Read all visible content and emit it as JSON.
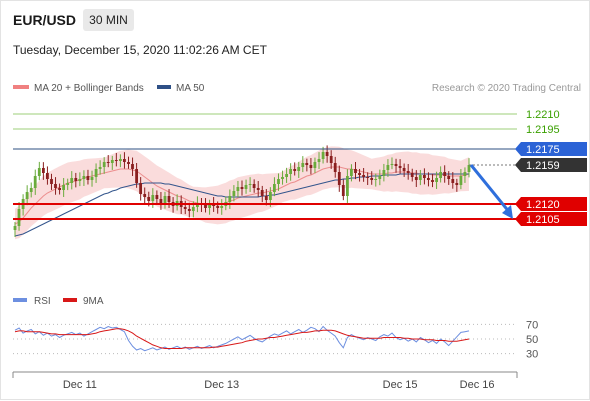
{
  "header": {
    "symbol": "EUR/USD",
    "timeframe": "30 MIN",
    "datetime": "Tuesday, December 15, 2020 11:02:26 AM CET"
  },
  "legend": {
    "ma20": "MA 20 + Bollinger Bands",
    "ma50": "MA 50",
    "rsi": "RSI",
    "ma9": "9MA"
  },
  "credit": "Research © 2020 Trading Central",
  "colors": {
    "candle_up": "#6aab3c",
    "candle_down": "#8a1f1f",
    "bollinger": "#f5b2b2",
    "ma20": "#e87a7a",
    "ma50": "#33558c",
    "target": "#3aa000",
    "current": "#333333",
    "support": "#e00000",
    "resistance_blue": "#2b63d6",
    "rsi": "#6d8fe0",
    "rsi_ma": "#d81818",
    "arrow": "#2f6fdc"
  },
  "chart_data": [
    {
      "type": "candlestick",
      "title": "",
      "x_tick_labels": [
        "Dec 11",
        "Dec 13",
        "Dec 15",
        "Dec 16"
      ],
      "x_tick_index": [
        16,
        51,
        95,
        114
      ],
      "ylim": [
        1.2075,
        1.2225
      ],
      "levels": [
        {
          "value": 1.221,
          "label": "1.2210",
          "kind": "target"
        },
        {
          "value": 1.2195,
          "label": "1.2195",
          "kind": "target"
        },
        {
          "value": 1.2175,
          "label": "1.2175",
          "kind": "resistance"
        },
        {
          "value": 1.2159,
          "label": "1.2159",
          "kind": "current"
        },
        {
          "value": 1.212,
          "label": "1.2120",
          "kind": "support"
        },
        {
          "value": 1.2105,
          "label": "1.2105",
          "kind": "support"
        }
      ],
      "close": [
        1.2098,
        1.2115,
        1.2125,
        1.2132,
        1.2136,
        1.2148,
        1.2156,
        1.2151,
        1.2145,
        1.214,
        1.2136,
        1.2134,
        1.2139,
        1.2141,
        1.2146,
        1.2143,
        1.2145,
        1.2148,
        1.2144,
        1.2147,
        1.2155,
        1.2157,
        1.2162,
        1.2161,
        1.2164,
        1.2163,
        1.2165,
        1.2162,
        1.216,
        1.2155,
        1.2141,
        1.213,
        1.2127,
        1.2123,
        1.2129,
        1.2125,
        1.2121,
        1.2128,
        1.2122,
        1.2118,
        1.2123,
        1.2117,
        1.2115,
        1.2113,
        1.2117,
        1.2121,
        1.2119,
        1.2116,
        1.212,
        1.2118,
        1.2116,
        1.2118,
        1.2122,
        1.2128,
        1.2133,
        1.2137,
        1.2135,
        1.2139,
        1.214,
        1.2136,
        1.2134,
        1.2128,
        1.2124,
        1.2132,
        1.214,
        1.2145,
        1.2147,
        1.215,
        1.2155,
        1.2153,
        1.2157,
        1.2161,
        1.2159,
        1.2156,
        1.2162,
        1.2165,
        1.2172,
        1.2168,
        1.2161,
        1.2152,
        1.2139,
        1.2128,
        1.2148,
        1.2155,
        1.2151,
        1.2149,
        1.2147,
        1.2146,
        1.2144,
        1.2145,
        1.2148,
        1.2154,
        1.2159,
        1.216,
        1.2158,
        1.2156,
        1.2153,
        1.2151,
        1.2147,
        1.2144,
        1.2149,
        1.2146,
        1.2144,
        1.2142,
        1.2146,
        1.2152,
        1.2148,
        1.2145,
        1.2141,
        1.2139,
        1.2148,
        1.2152,
        1.2159
      ],
      "ma20": [
        1.21,
        1.2102,
        1.2106,
        1.2111,
        1.2116,
        1.212,
        1.2124,
        1.2128,
        1.2131,
        1.2133,
        1.2135,
        1.2137,
        1.2139,
        1.2141,
        1.2142,
        1.2143,
        1.2144,
        1.2146,
        1.2147,
        1.2148,
        1.2149,
        1.215,
        1.2151,
        1.2152,
        1.2153,
        1.2154,
        1.2155,
        1.2155,
        1.2155,
        1.2154,
        1.2153,
        1.215,
        1.2147,
        1.2144,
        1.2141,
        1.2138,
        1.2136,
        1.2134,
        1.2132,
        1.213,
        1.2128,
        1.2127,
        1.2125,
        1.2123,
        1.2122,
        1.2121,
        1.212,
        1.2119,
        1.2119,
        1.2119,
        1.2119,
        1.212,
        1.2121,
        1.2123,
        1.2124,
        1.2126,
        1.2127,
        1.2128,
        1.2129,
        1.213,
        1.2131,
        1.2131,
        1.2132,
        1.2133,
        1.2134,
        1.2135,
        1.2137,
        1.2139,
        1.2141,
        1.2142,
        1.2144,
        1.2146,
        1.2148,
        1.2149,
        1.2151,
        1.2153,
        1.2155,
        1.2156,
        1.2157,
        1.2157,
        1.2157,
        1.2156,
        1.2155,
        1.2155,
        1.2154,
        1.2153,
        1.2152,
        1.2151,
        1.215,
        1.215,
        1.215,
        1.215,
        1.2151,
        1.2151,
        1.2152,
        1.2152,
        1.2152,
        1.2152,
        1.2151,
        1.2151,
        1.215,
        1.215,
        1.215,
        1.2149,
        1.2149,
        1.2149,
        1.2149,
        1.2148,
        1.2148,
        1.2148,
        1.2148,
        1.2149,
        1.215
      ],
      "ma50": [
        1.2088,
        1.2089,
        1.209,
        1.2092,
        1.2094,
        1.2096,
        1.2098,
        1.21,
        1.2102,
        1.2104,
        1.2106,
        1.2108,
        1.211,
        1.2112,
        1.2114,
        1.2116,
        1.2118,
        1.212,
        1.2122,
        1.2124,
        1.2126,
        1.2128,
        1.213,
        1.2131,
        1.2133,
        1.2134,
        1.2136,
        1.2137,
        1.2138,
        1.2139,
        1.214,
        1.214,
        1.2141,
        1.2141,
        1.2141,
        1.2141,
        1.2141,
        1.214,
        1.214,
        1.2139,
        1.2138,
        1.2137,
        1.2136,
        1.2135,
        1.2134,
        1.2133,
        1.2132,
        1.2131,
        1.213,
        1.2129,
        1.2128,
        1.2128,
        1.2127,
        1.2127,
        1.2127,
        1.2127,
        1.2127,
        1.2127,
        1.2127,
        1.2127,
        1.2127,
        1.2128,
        1.2128,
        1.2129,
        1.2129,
        1.213,
        1.2131,
        1.2132,
        1.2133,
        1.2134,
        1.2135,
        1.2136,
        1.2137,
        1.2138,
        1.2139,
        1.214,
        1.2141,
        1.2142,
        1.2143,
        1.2144,
        1.2144,
        1.2145,
        1.2145,
        1.2146,
        1.2146,
        1.2147,
        1.2147,
        1.2147,
        1.2148,
        1.2148,
        1.2148,
        1.2149,
        1.2149,
        1.2149,
        1.2149,
        1.215,
        1.215,
        1.215,
        1.215,
        1.215,
        1.215,
        1.215,
        1.215,
        1.215,
        1.215,
        1.215,
        1.215,
        1.215,
        1.215,
        1.215,
        1.215,
        1.215,
        1.215
      ],
      "bollinger_width": 0.0018,
      "forecast": {
        "from": 1.2159,
        "to": 1.2105
      }
    },
    {
      "type": "line",
      "title": "RSI",
      "ylim": [
        20,
        80
      ],
      "y_ticks": [
        70,
        50,
        30
      ],
      "reference_lines": [
        70,
        50,
        30
      ],
      "rsi": [
        62,
        65,
        58,
        61,
        63,
        57,
        60,
        55,
        58,
        54,
        56,
        52,
        55,
        57,
        59,
        56,
        58,
        54,
        57,
        60,
        63,
        66,
        64,
        67,
        65,
        66,
        63,
        60,
        48,
        40,
        35,
        37,
        34,
        36,
        38,
        35,
        37,
        39,
        36,
        38,
        40,
        37,
        39,
        36,
        38,
        40,
        37,
        39,
        41,
        38,
        40,
        42,
        44,
        47,
        50,
        53,
        49,
        52,
        55,
        51,
        48,
        46,
        50,
        54,
        57,
        55,
        58,
        61,
        57,
        60,
        63,
        59,
        62,
        66,
        64,
        60,
        67,
        62,
        58,
        54,
        45,
        38,
        52,
        56,
        53,
        51,
        49,
        52,
        50,
        48,
        53,
        56,
        54,
        58,
        52,
        49,
        51,
        47,
        50,
        46,
        52,
        49,
        45,
        48,
        44,
        50,
        46,
        41,
        47,
        53,
        59,
        60,
        61
      ],
      "ma9": [
        60,
        61,
        61,
        60,
        60,
        60,
        60,
        59,
        58,
        57,
        57,
        56,
        56,
        56,
        56,
        56,
        56,
        56,
        56,
        57,
        58,
        60,
        61,
        62,
        63,
        64,
        64,
        63,
        61,
        58,
        54,
        51,
        48,
        45,
        42,
        40,
        38,
        37,
        37,
        37,
        37,
        37,
        38,
        38,
        38,
        38,
        38,
        38,
        38,
        39,
        39,
        40,
        41,
        42,
        43,
        44,
        45,
        47,
        48,
        49,
        50,
        50,
        51,
        52,
        52,
        53,
        54,
        55,
        56,
        57,
        58,
        59,
        59,
        60,
        61,
        61,
        62,
        62,
        62,
        61,
        59,
        57,
        55,
        54,
        53,
        52,
        51,
        51,
        51,
        51,
        51,
        52,
        52,
        52,
        52,
        52,
        51,
        51,
        50,
        50,
        50,
        49,
        49,
        49,
        48,
        48,
        48,
        47,
        47,
        47,
        48,
        49,
        50
      ]
    }
  ]
}
